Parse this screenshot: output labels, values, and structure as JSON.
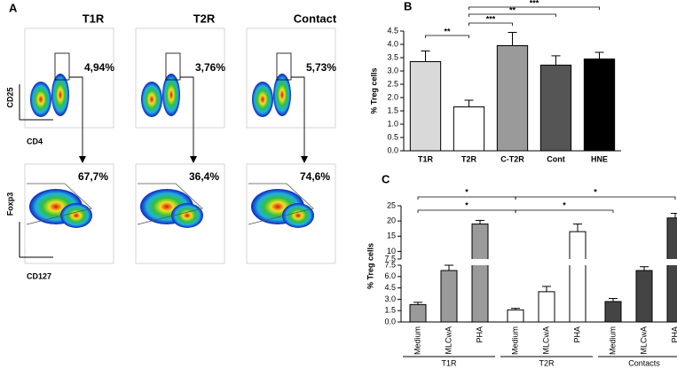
{
  "panel_a": {
    "letter": "A",
    "columns": [
      "T1R",
      "T2R",
      "Contact"
    ],
    "top_percent": [
      "4,94%",
      "3,76%",
      "5,73%"
    ],
    "bottom_percent": [
      "67,7%",
      "36,4%",
      "74,6%"
    ],
    "top_y_label": "CD25",
    "top_x_label": "CD4",
    "bottom_y_label": "Foxp3",
    "bottom_x_label": "CD127"
  },
  "chart_data": [
    {
      "type": "bar",
      "letter": "B",
      "y_label": "% Treg cells",
      "categories": [
        "T1R",
        "T2R",
        "C-T2R",
        "Cont",
        "HNE"
      ],
      "values": [
        3.35,
        1.65,
        3.95,
        3.22,
        3.45
      ],
      "errors": [
        0.4,
        0.25,
        0.5,
        0.35,
        0.25
      ],
      "colors": [
        "#d9d9d9",
        "#ffffff",
        "#9a9a9a",
        "#555555",
        "#000000"
      ],
      "ylim": [
        0,
        4.5
      ],
      "yticks": [
        {
          "value": 0,
          "label": "0.0"
        },
        0.5,
        {
          "value": 1,
          "label": "1.0"
        },
        1.5,
        {
          "value": 2,
          "label": "2.0"
        },
        2.5,
        {
          "value": 3,
          "label": "3.0"
        },
        3.5,
        {
          "value": 4,
          "label": "4.0"
        },
        4.5
      ],
      "annotations": [
        {
          "text": "**",
          "from": 0,
          "to": 1
        },
        {
          "text": "***",
          "from": 1,
          "to": 2
        },
        {
          "text": "**",
          "from": 1,
          "to": 3
        },
        {
          "text": "***",
          "from": 1,
          "to": 4
        }
      ]
    },
    {
      "type": "groupbar",
      "letter": "C",
      "y_label": "% Treg cells",
      "categories": [
        "Medium",
        "MLCwA",
        "PHA"
      ],
      "series": [
        {
          "name": "T1R",
          "color": "#9a9a9a",
          "values": [
            2.3,
            6.8,
            19
          ],
          "errors": [
            0.3,
            0.7,
            1.2
          ]
        },
        {
          "name": "T2R",
          "color": "#ffffff",
          "values": [
            1.6,
            4.0,
            16.5
          ],
          "errors": [
            0.2,
            0.7,
            2.5
          ]
        },
        {
          "name": "Contacts",
          "color": "#444444",
          "values": [
            2.7,
            6.8,
            21
          ],
          "errors": [
            0.4,
            0.5,
            1.5
          ]
        }
      ],
      "ylim_lower": [
        0,
        7.5
      ],
      "ylim_upper": [
        7.5,
        25
      ],
      "yticks_lower": [
        {
          "value": 0,
          "label": "0.0"
        },
        1.5,
        {
          "value": 3,
          "label": "3.0"
        },
        4.5,
        {
          "value": 6,
          "label": "6.0"
        },
        7.5
      ],
      "yticks_upper": [
        7.5,
        10,
        15,
        20,
        25
      ],
      "annotations": [
        {
          "text": "*",
          "from": [
            0,
            0
          ],
          "to": [
            1,
            0
          ],
          "level": 1
        },
        {
          "text": "*",
          "from": [
            1,
            0
          ],
          "to": [
            2,
            0
          ],
          "level": 1
        },
        {
          "text": "*",
          "from": [
            0,
            0
          ],
          "to": [
            1,
            0
          ],
          "level": 2
        },
        {
          "text": "*",
          "from": [
            1,
            0
          ],
          "to": [
            2,
            2
          ],
          "level": 2
        }
      ]
    }
  ]
}
